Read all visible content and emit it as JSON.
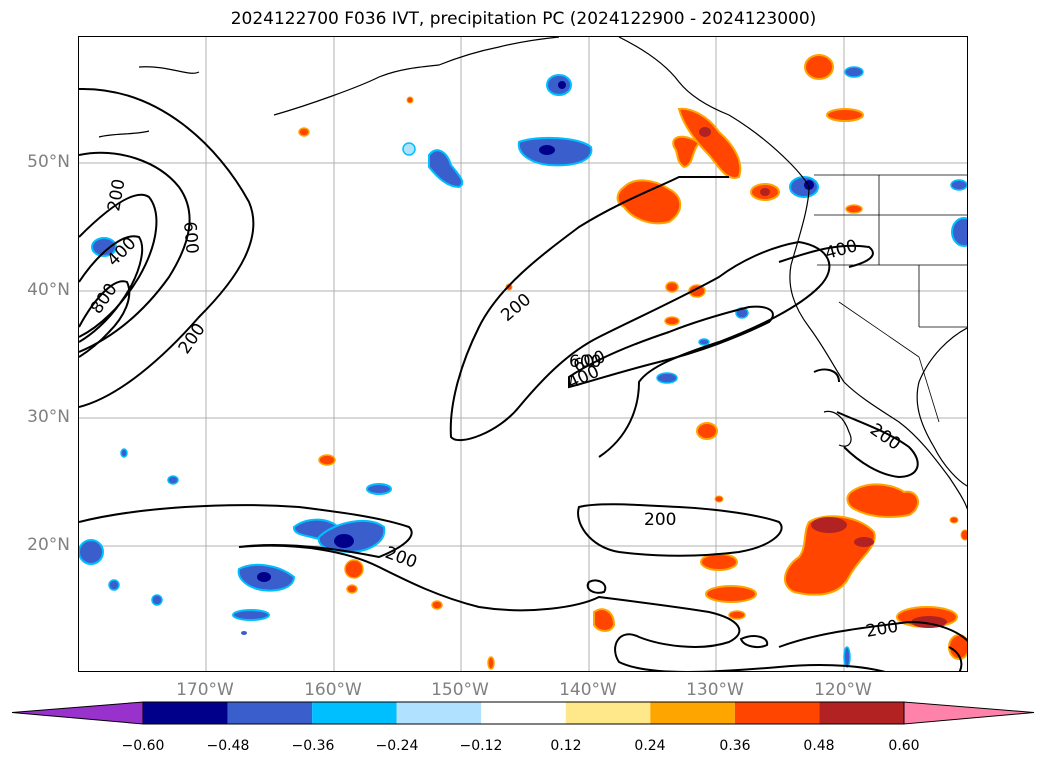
{
  "title": "2024122700 F036 IVT, precipitation PC (2024122900 - 2024123000)",
  "lat_labels": [
    "50°N",
    "40°N",
    "30°N",
    "20°N"
  ],
  "lon_labels": [
    "170°W",
    "160°W",
    "150°W",
    "140°W",
    "130°W",
    "120°W"
  ],
  "contour_labels": [
    "200",
    "400",
    "600",
    "800",
    "600",
    "200",
    "200",
    "400",
    "600",
    "400",
    "200",
    "200",
    "200",
    "200"
  ],
  "colorbar": {
    "ticks": [
      "−0.60",
      "−0.48",
      "−0.36",
      "−0.24",
      "−0.12",
      "0.12",
      "0.24",
      "0.36",
      "0.48",
      "0.60"
    ],
    "colors": [
      "#9932cc",
      "#00008b",
      "#3a5fcd",
      "#00bfff",
      "#b0e2ff",
      "#ffffff",
      "#ffe88a",
      "#ffa500",
      "#ff4500",
      "#b22222",
      "#ff82ab"
    ]
  }
}
